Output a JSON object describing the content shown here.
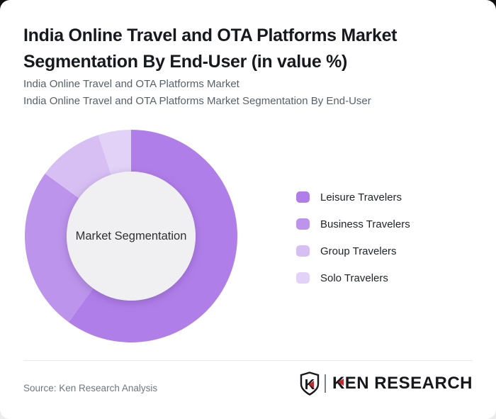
{
  "page": {
    "title_line1": "India Online Travel and OTA Platforms Market",
    "title_line2": "Segmentation By End-User (in value %)",
    "subtitle_line1": "India Online Travel and OTA Platforms Market",
    "subtitle_line2": "India Online Travel and OTA Platforms Market Segmentation By End-User"
  },
  "chart_data": {
    "type": "pie",
    "variant": "donut",
    "title": "India Online Travel and OTA Platforms Market Segmentation By End-User (in value %)",
    "center_label": "Market Segmentation",
    "categories": [
      "Leisure Travelers",
      "Business Travelers",
      "Group Travelers",
      "Solo Travelers"
    ],
    "values": [
      60,
      25,
      10,
      5
    ],
    "values_estimated_from_arc_angles": true,
    "unit": "% of value",
    "colors": [
      "#b07ee9",
      "#bc94ec",
      "#d7bef3",
      "#e3d2f7"
    ],
    "start_angle_deg": 0,
    "direction": "clockwise",
    "inner_hole_color": "#f0eff1",
    "legend_position": "right",
    "data_labels_shown": false
  },
  "legend": {
    "items": [
      {
        "label": "Leisure Travelers",
        "color": "#b07ee9"
      },
      {
        "label": "Business Travelers",
        "color": "#bc94ec"
      },
      {
        "label": "Group Travelers",
        "color": "#d7bef3"
      },
      {
        "label": "Solo Travelers",
        "color": "#e3d2f7"
      }
    ]
  },
  "footer": {
    "source": "Source: Ken Research Analysis",
    "brand": {
      "shield_letter": "K",
      "wordmark_k": "K",
      "wordmark_rest": "EN RESEARCH",
      "accent_color": "#c9252b",
      "ink_color": "#16181c"
    }
  }
}
